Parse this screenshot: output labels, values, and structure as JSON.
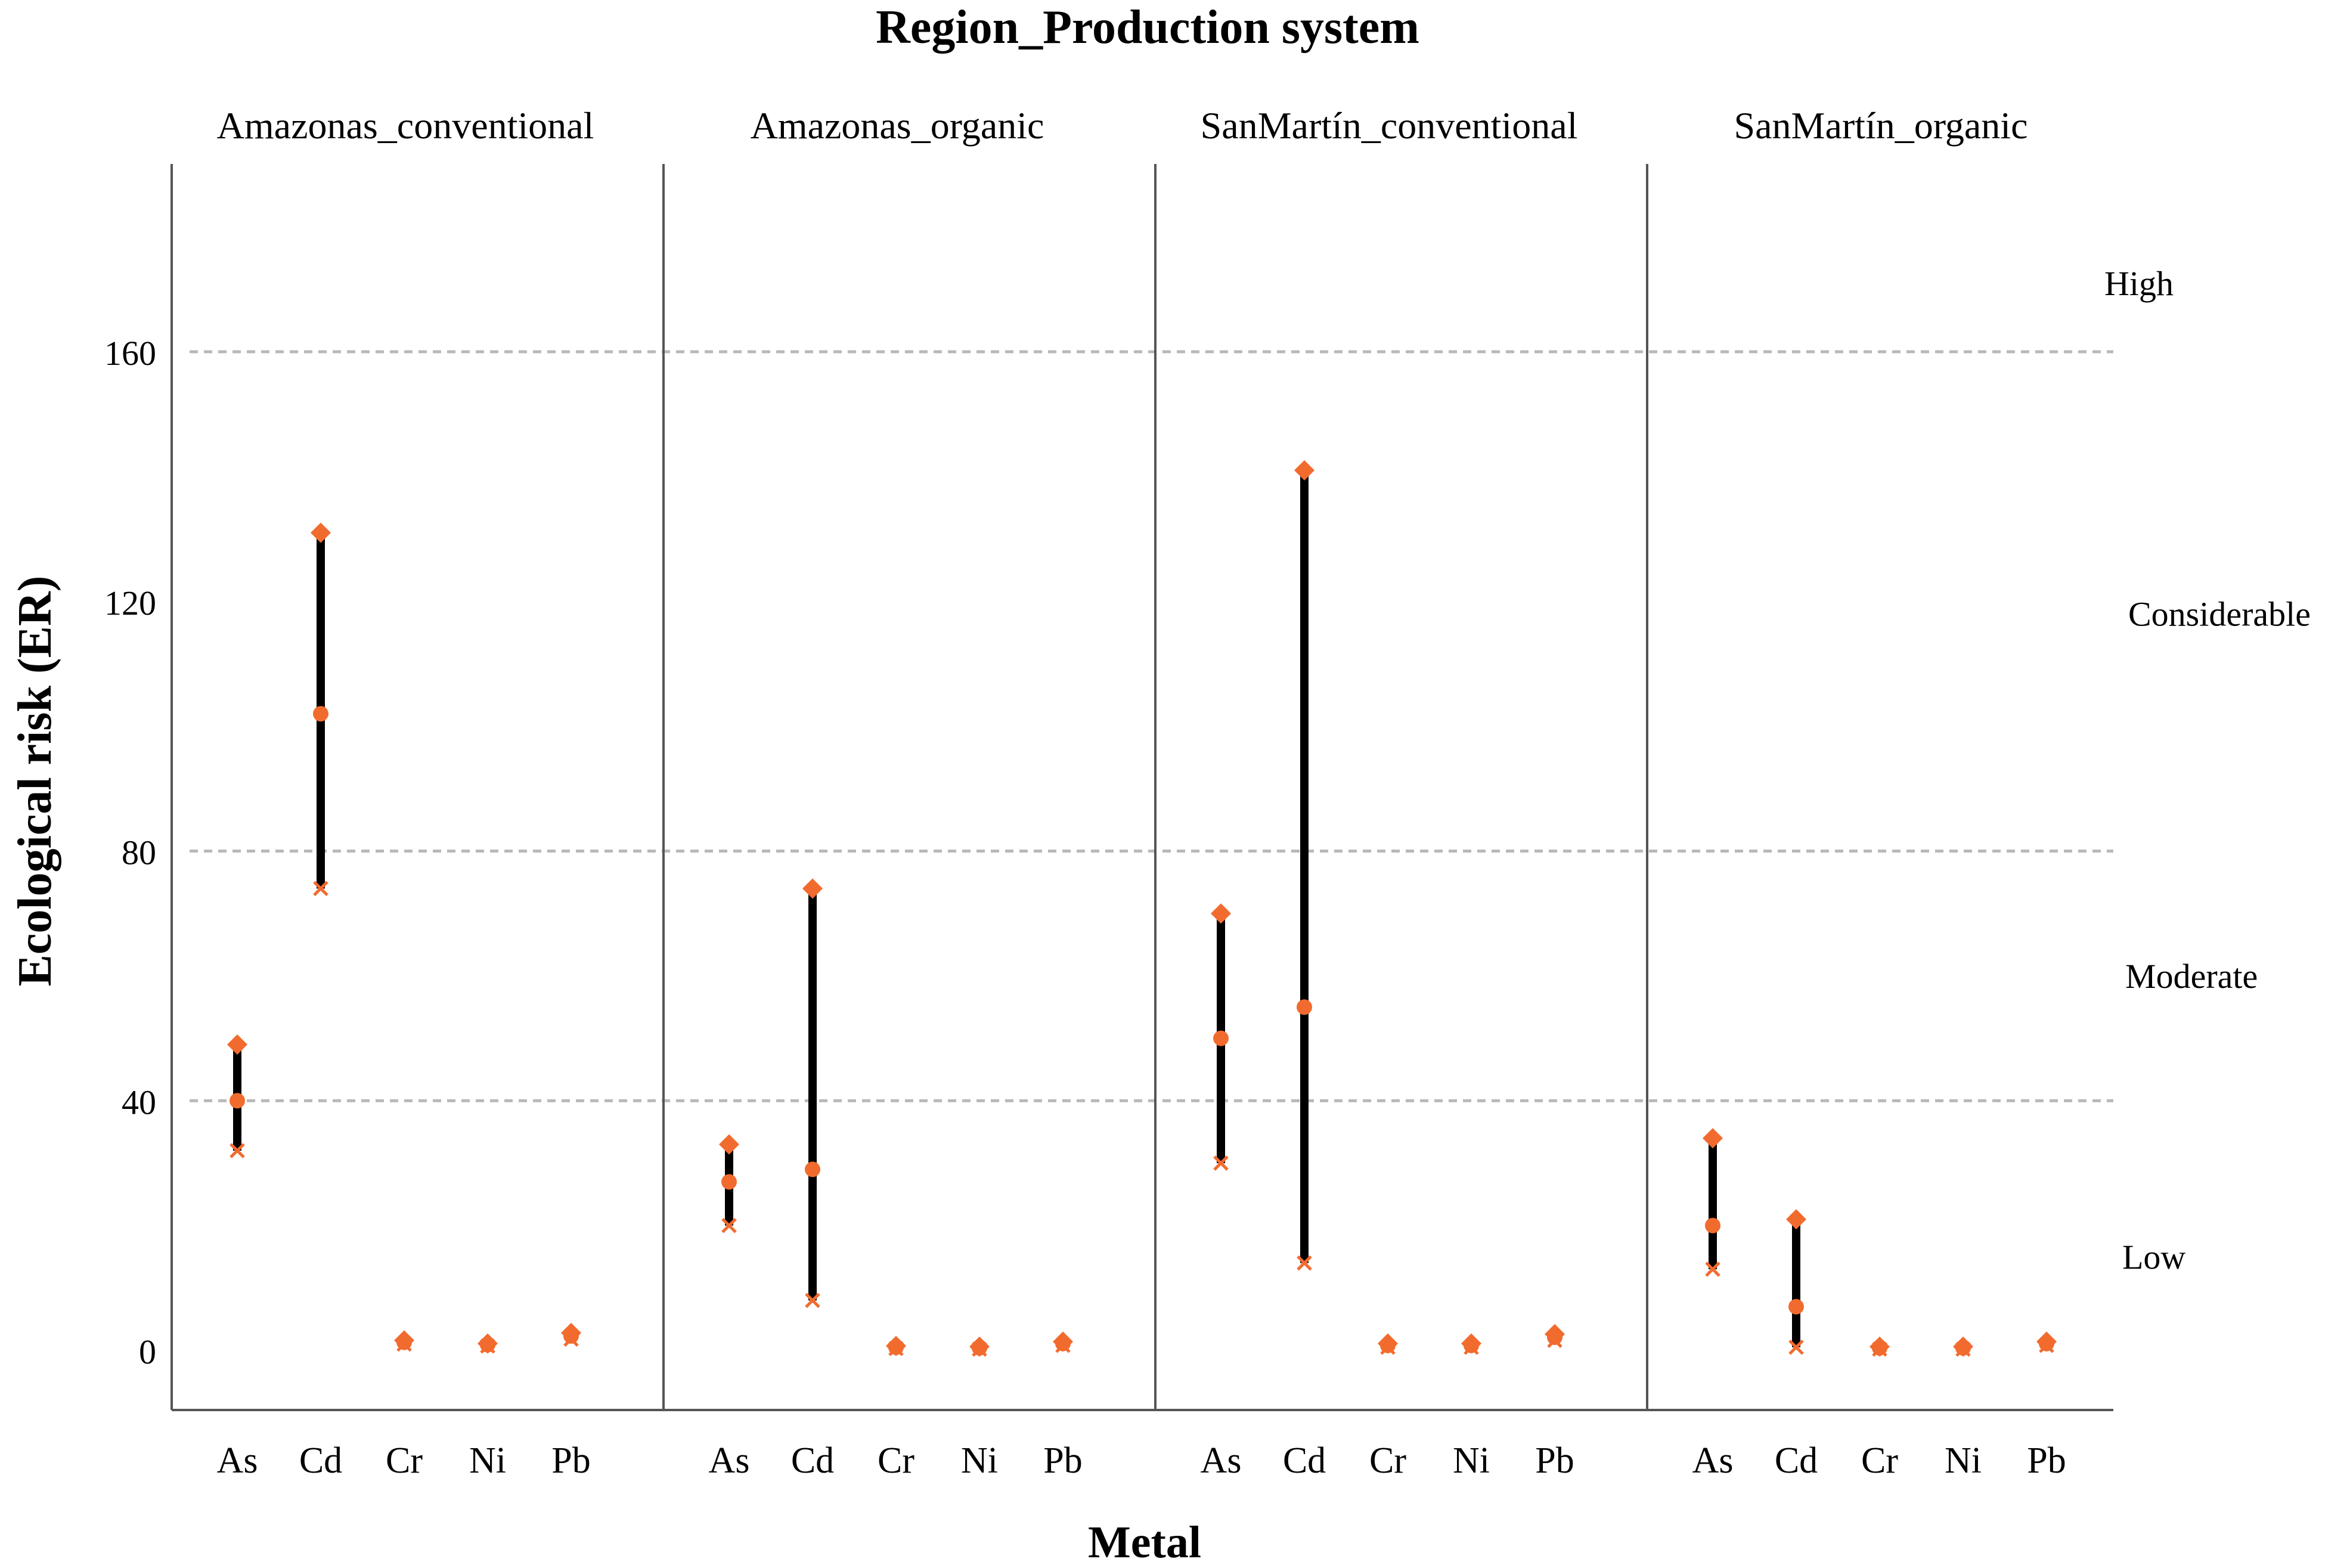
{
  "chart_data": {
    "type": "range",
    "title": "Region_Production system",
    "xlabel": "Metal",
    "ylabel": "Ecological risk (ER)",
    "ylim": [
      -10,
      190
    ],
    "yticks": [
      0,
      40,
      80,
      120,
      160
    ],
    "reference_lines": [
      40,
      80,
      160
    ],
    "risk_labels": [
      {
        "label": "High",
        "value": 171
      },
      {
        "label": "Considerable",
        "value": 118
      },
      {
        "label": "Moderate",
        "value": 60
      },
      {
        "label": "Low",
        "value": 15
      }
    ],
    "categories": [
      "As",
      "Cd",
      "Cr",
      "Ni",
      "Pb"
    ],
    "panels": [
      {
        "name": "Amazonas_conventional",
        "ranges": [
          {
            "metal": "As",
            "min": 32,
            "mean": 40,
            "max": 49
          },
          {
            "metal": "Cd",
            "min": 74,
            "mean": 102,
            "max": 131
          },
          {
            "metal": "Cr",
            "min": 1,
            "mean": 1.3,
            "max": 1.6
          },
          {
            "metal": "Ni",
            "min": 0.7,
            "mean": 0.9,
            "max": 1.1
          },
          {
            "metal": "Pb",
            "min": 1.8,
            "mean": 2.3,
            "max": 2.8
          }
        ]
      },
      {
        "name": "Amazonas_organic",
        "ranges": [
          {
            "metal": "As",
            "min": 20,
            "mean": 27,
            "max": 33
          },
          {
            "metal": "Cd",
            "min": 8,
            "mean": 29,
            "max": 74
          },
          {
            "metal": "Cr",
            "min": 0.3,
            "mean": 0.5,
            "max": 0.7
          },
          {
            "metal": "Ni",
            "min": 0.2,
            "mean": 0.4,
            "max": 0.6
          },
          {
            "metal": "Pb",
            "min": 0.8,
            "mean": 1.1,
            "max": 1.4
          }
        ]
      },
      {
        "name": "SanMartín_conventional",
        "ranges": [
          {
            "metal": "As",
            "min": 30,
            "mean": 50,
            "max": 70
          },
          {
            "metal": "Cd",
            "min": 14,
            "mean": 55,
            "max": 141
          },
          {
            "metal": "Cr",
            "min": 0.5,
            "mean": 0.8,
            "max": 1.1
          },
          {
            "metal": "Ni",
            "min": 0.5,
            "mean": 0.8,
            "max": 1.1
          },
          {
            "metal": "Pb",
            "min": 1.6,
            "mean": 2.1,
            "max": 2.6
          }
        ]
      },
      {
        "name": "SanMartín_organic",
        "ranges": [
          {
            "metal": "As",
            "min": 13,
            "mean": 20,
            "max": 34
          },
          {
            "metal": "Cd",
            "min": 0.5,
            "mean": 7,
            "max": 21
          },
          {
            "metal": "Cr",
            "min": 0.2,
            "mean": 0.4,
            "max": 0.6
          },
          {
            "metal": "Ni",
            "min": 0.2,
            "mean": 0.4,
            "max": 0.6
          },
          {
            "metal": "Pb",
            "min": 0.8,
            "mean": 1.1,
            "max": 1.4
          }
        ]
      }
    ],
    "colors": {
      "marker": "#f26b2e",
      "line": "#000000",
      "grid": "#b8b8b8",
      "axis": "#555555"
    }
  }
}
